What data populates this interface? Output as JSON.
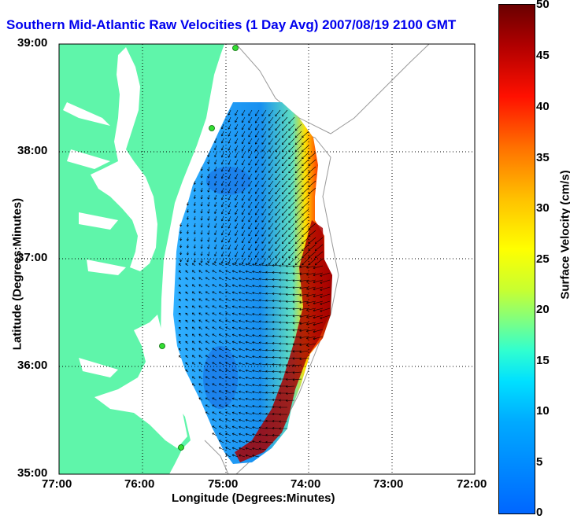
{
  "title": "Southern Mid-Atlantic Raw Velocities (1 Day Avg) 2007/08/19 2100 GMT",
  "x_axis": {
    "label": "Longitude (Degrees:Minutes)",
    "ticks": [
      "77:00",
      "76:00",
      "75:00",
      "74:00",
      "73:00",
      "72:00"
    ]
  },
  "y_axis": {
    "label": "Latitude (Degrees:Minutes)",
    "ticks": [
      "39:00",
      "38:00",
      "37:00",
      "36:00",
      "35:00"
    ]
  },
  "colorbar": {
    "label": "Surface Velocity (cm/s)",
    "ticks": [
      "0",
      "5",
      "10",
      "15",
      "20",
      "25",
      "30",
      "35",
      "40",
      "45",
      "50"
    ],
    "min": 0,
    "max": 50
  },
  "colors": {
    "land": "#5ff5aa",
    "water": "#ffffff",
    "slow": "#2090ee",
    "fast": "#8a0000",
    "station": "#33dd33",
    "title": "#0000ee"
  }
}
